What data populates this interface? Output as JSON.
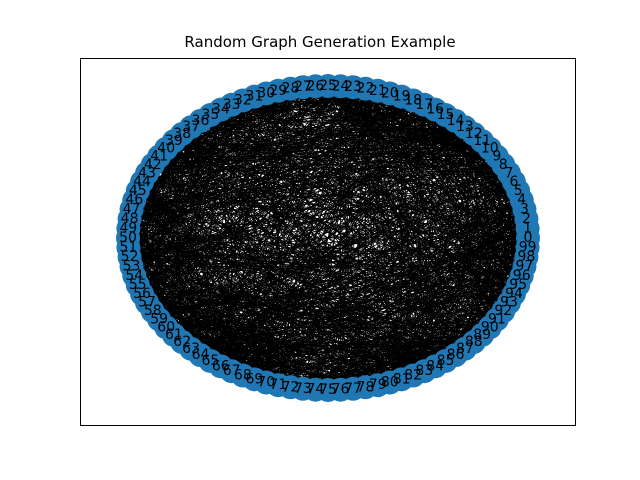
{
  "figure": {
    "title": "Random Graph Generation Example"
  },
  "graph": {
    "node_count": 100,
    "node_labels": [
      "0",
      "1",
      "2",
      "3",
      "4",
      "5",
      "6",
      "7",
      "8",
      "9",
      "10",
      "11",
      "12",
      "13",
      "14",
      "15",
      "16",
      "17",
      "18",
      "19",
      "20",
      "21",
      "22",
      "23",
      "24",
      "25",
      "26",
      "27",
      "28",
      "29",
      "30",
      "31",
      "32",
      "33",
      "34",
      "35",
      "36",
      "37",
      "38",
      "39",
      "40",
      "41",
      "42",
      "43",
      "44",
      "45",
      "46",
      "47",
      "48",
      "49",
      "50",
      "51",
      "52",
      "53",
      "54",
      "55",
      "56",
      "57",
      "58",
      "59",
      "60",
      "61",
      "62",
      "63",
      "64",
      "65",
      "66",
      "67",
      "68",
      "69",
      "70",
      "71",
      "72",
      "73",
      "74",
      "75",
      "76",
      "77",
      "78",
      "79",
      "80",
      "81",
      "82",
      "83",
      "84",
      "85",
      "86",
      "87",
      "88",
      "89",
      "90",
      "91",
      "92",
      "93",
      "94",
      "95",
      "96",
      "97",
      "98",
      "99"
    ],
    "node_color": "#1f77b4",
    "edge_color": "#000000",
    "label_color": "#000000",
    "layout": "circular",
    "dense_edges": true
  }
}
